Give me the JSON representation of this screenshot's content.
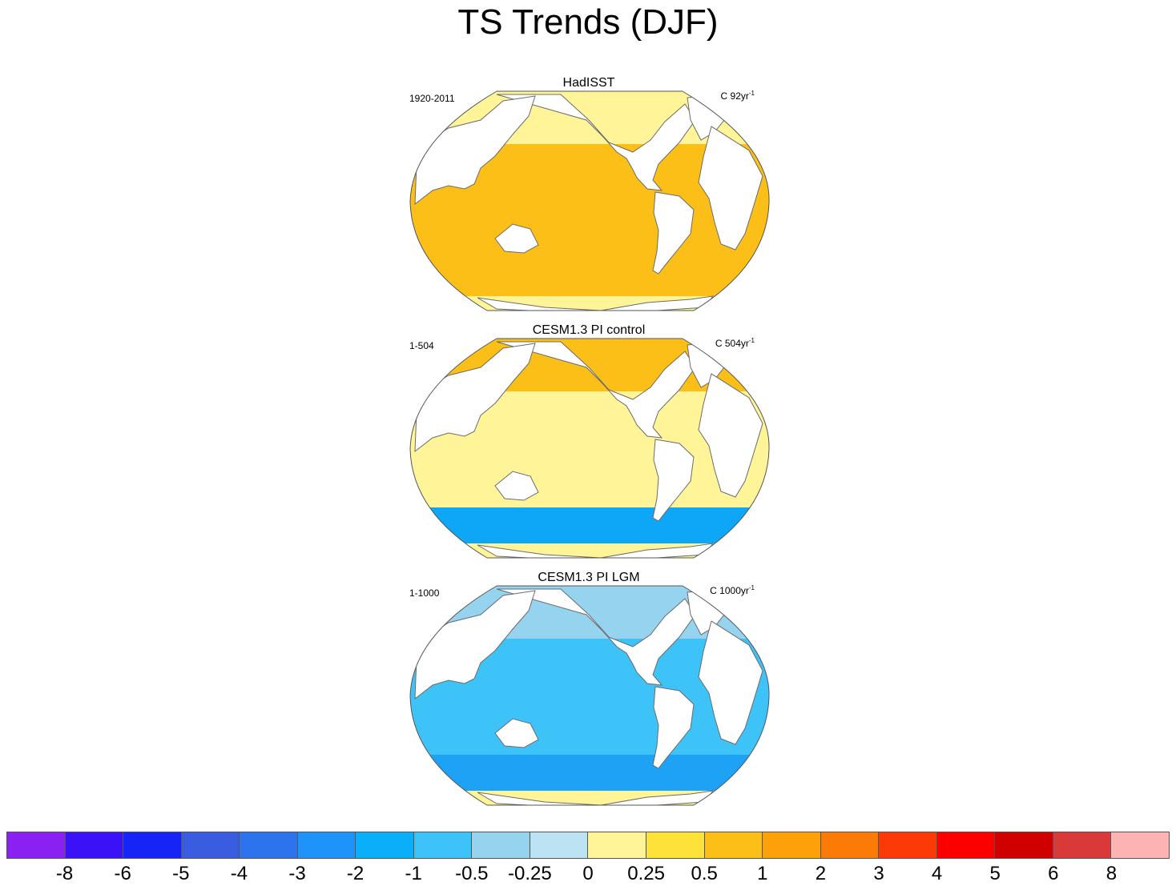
{
  "title": "TS Trends (DJF)",
  "chart_data": {
    "type": "map",
    "title": "TS Trends (DJF)",
    "projection": "Robinson (global, 180°E centered)",
    "panels": [
      {
        "title": "HadISST",
        "period": "1920-2011",
        "units_prefix": "C 92yr",
        "units_exp": "-1",
        "dominant_range": [
          0.5,
          2
        ],
        "colors": {
          "ocean": "#fcbf18",
          "north": "#fff598",
          "south": "#fcbf18",
          "ice": "#fff598"
        }
      },
      {
        "title": "CESM1.3 PI control",
        "period": "1-504",
        "units_prefix": "C 504yr",
        "units_exp": "-1",
        "dominant_range": [
          -1,
          1
        ],
        "colors": {
          "ocean": "#fff598",
          "north": "#fcbf18",
          "south": "#0ea6f6",
          "ice": "#fff598"
        }
      },
      {
        "title": "CESM1.3 PI LGM",
        "period": "1-1000",
        "units_prefix": "C 1000yr",
        "units_exp": "-1",
        "dominant_range": [
          -1,
          -0.5
        ],
        "colors": {
          "ocean": "#3ec3f8",
          "north": "#96d3ef",
          "south": "#1ea2f5",
          "ice": "#fff598"
        }
      }
    ],
    "colorbar": {
      "colors": [
        "#8a21f2",
        "#3b12f8",
        "#1624f6",
        "#3a5ce0",
        "#2d73ee",
        "#1e94fa",
        "#0aaef9",
        "#3ec3f8",
        "#96d3ef",
        "#bce3f4",
        "#fff598",
        "#fee23a",
        "#fcbf18",
        "#fca10a",
        "#fc7a06",
        "#fc3a06",
        "#fc0000",
        "#d10000",
        "#d93939",
        "#fdb3b3"
      ],
      "labels": [
        "-8",
        "-6",
        "-5",
        "-4",
        "-3",
        "-2",
        "-1",
        "-0.5",
        "-0.25",
        "0",
        "0.25",
        "0.5",
        "1",
        "2",
        "3",
        "4",
        "5",
        "6",
        "8"
      ]
    }
  }
}
